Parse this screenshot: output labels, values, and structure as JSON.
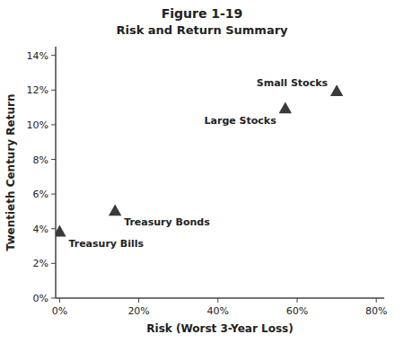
{
  "chart_data": {
    "type": "scatter",
    "title": "Figure 1-19",
    "subtitle": "Risk and Return Summary",
    "x_label": "Risk (Worst 3-Year Loss)",
    "y_label": "Twentieth Century Return",
    "x": [
      0.0,
      0.14,
      0.57,
      0.7
    ],
    "values": [
      0.038,
      0.05,
      0.109,
      0.119
    ],
    "labels": [
      "Treasury Bills",
      "Treasury Bonds",
      "Large Stocks",
      "Small Stocks"
    ],
    "color": "#3a3a3a",
    "marker": "triangle",
    "xlim": [
      -0.01,
      0.82
    ],
    "ylim": [
      0.0,
      0.145
    ],
    "xticks": [
      {
        "value": 0.0,
        "label": "0%"
      },
      {
        "value": 0.2,
        "label": "20%"
      },
      {
        "value": 0.4,
        "label": "40%"
      },
      {
        "value": 0.6,
        "label": "60%"
      },
      {
        "value": 0.8,
        "label": "80%"
      }
    ],
    "yticks": [
      {
        "value": 0.0,
        "label": "0%"
      },
      {
        "value": 0.02,
        "label": "2%"
      },
      {
        "value": 0.04,
        "label": "4%"
      },
      {
        "value": 0.06,
        "label": "6%"
      },
      {
        "value": 0.08,
        "label": "8%"
      },
      {
        "value": 0.1,
        "label": "10%"
      },
      {
        "value": 0.12,
        "label": "12%"
      },
      {
        "value": 0.14,
        "label": "14%"
      }
    ],
    "grid": false
  }
}
